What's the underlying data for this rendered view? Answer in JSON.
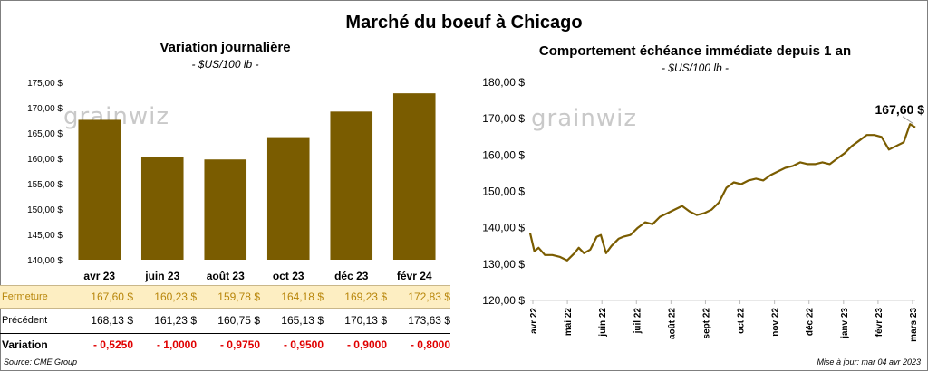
{
  "main_title": "Marché du boeuf à Chicago",
  "colors": {
    "bar": "#7a5c00",
    "line": "#7a5c00",
    "closing_bg": "#fdeec2",
    "negative": "#e00000",
    "watermark": "#c9c9c9"
  },
  "watermark": "grainwiz",
  "left": {
    "title": "Variation journalière",
    "unit": "- $US/100 lb -",
    "table": {
      "closing_label": "Fermeture",
      "previous_label": "Précédent",
      "variation_label": "Variation",
      "closing": [
        "167,60",
        "160,23",
        "159,78",
        "164,18",
        "169,23",
        "172,83"
      ],
      "previous": [
        "168,13",
        "161,23",
        "160,75",
        "165,13",
        "170,13",
        "173,63"
      ],
      "variation": [
        "- 0,5250",
        "- 1,0000",
        "- 0,9750",
        "- 0,9500",
        "- 0,9000",
        "- 0,8000"
      ],
      "currency": "$"
    }
  },
  "right": {
    "title": "Comportement  échéance immédiate depuis 1 an",
    "unit": "- $US/100 lb -",
    "last_label": "167,60 $"
  },
  "footer": {
    "source": "Source: CME Group",
    "updated": "Mise à jour: mar 04 avr 2023"
  },
  "chart_data": [
    {
      "type": "bar",
      "title": "Variation journalière",
      "categories": [
        "avr 23",
        "juin 23",
        "août 23",
        "oct 23",
        "déc 23",
        "févr 24"
      ],
      "values": [
        167.6,
        160.23,
        159.78,
        164.18,
        169.23,
        172.83
      ],
      "ylim": [
        140,
        175
      ],
      "yticks": [
        140,
        145,
        150,
        155,
        160,
        165,
        170,
        175
      ],
      "ytick_labels": [
        "140,00 $",
        "145,00 $",
        "150,00 $",
        "155,00 $",
        "160,00 $",
        "165,00 $",
        "170,00 $",
        "175,00 $"
      ],
      "grid": false
    },
    {
      "type": "line",
      "title": "Comportement  échéance immédiate depuis 1 an",
      "ylim": [
        120,
        180
      ],
      "yticks": [
        120,
        130,
        140,
        150,
        160,
        170,
        180
      ],
      "ytick_labels": [
        "120,00 $",
        "130,00 $",
        "140,00 $",
        "150,00 $",
        "160,00 $",
        "170,00 $",
        "180,00 $"
      ],
      "xticks": [
        "avr 22",
        "mai 22",
        "juin 22",
        "juil 22",
        "août 22",
        "sept 22",
        "oct 22",
        "nov 22",
        "déc 22",
        "janv 23",
        "févr 23",
        "mars 23"
      ],
      "grid": false,
      "series": [
        {
          "x": [
            "2022-04-04",
            "2022-04-08",
            "2022-04-12",
            "2022-04-18",
            "2022-04-25",
            "2022-05-02",
            "2022-05-09",
            "2022-05-16",
            "2022-05-20",
            "2022-05-25",
            "2022-05-31",
            "2022-06-06",
            "2022-06-10",
            "2022-06-15",
            "2022-06-20",
            "2022-06-27",
            "2022-07-01",
            "2022-07-08",
            "2022-07-15",
            "2022-07-22",
            "2022-07-29",
            "2022-08-05",
            "2022-08-12",
            "2022-08-19",
            "2022-08-26",
            "2022-09-02",
            "2022-09-09",
            "2022-09-16",
            "2022-09-23",
            "2022-09-30",
            "2022-10-07",
            "2022-10-14",
            "2022-10-21",
            "2022-10-28",
            "2022-11-04",
            "2022-11-11",
            "2022-11-18",
            "2022-11-25",
            "2022-12-02",
            "2022-12-09",
            "2022-12-16",
            "2022-12-23",
            "2022-12-30",
            "2023-01-06",
            "2023-01-13",
            "2023-01-20",
            "2023-01-27",
            "2023-02-03",
            "2023-02-10",
            "2023-02-17",
            "2023-02-24",
            "2023-03-03",
            "2023-03-10",
            "2023-03-17",
            "2023-03-24",
            "2023-03-30",
            "2023-04-04"
          ],
          "y": [
            138.5,
            133.5,
            134.5,
            132.5,
            132.5,
            132.0,
            131.0,
            133.0,
            134.5,
            133.0,
            134.0,
            137.5,
            138.0,
            133.0,
            135.0,
            137.0,
            137.5,
            138.0,
            140.0,
            141.5,
            141.0,
            143.0,
            144.0,
            145.0,
            146.0,
            144.5,
            143.5,
            144.0,
            145.0,
            147.0,
            151.0,
            152.5,
            152.0,
            153.0,
            153.5,
            153.0,
            154.5,
            155.5,
            156.5,
            157.0,
            158.0,
            157.5,
            157.5,
            158.0,
            157.5,
            159.0,
            160.5,
            162.5,
            164.0,
            165.5,
            165.5,
            165.0,
            161.5,
            162.5,
            163.5,
            168.5,
            167.6
          ]
        }
      ]
    }
  ]
}
